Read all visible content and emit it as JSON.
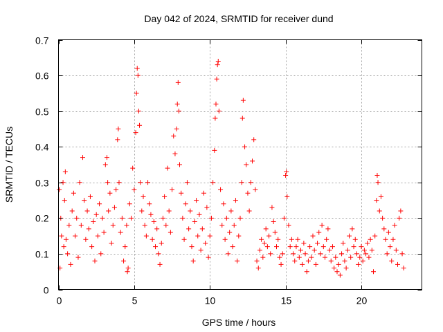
{
  "chart_data": {
    "type": "scatter",
    "title": "Day 042 of 2024, SRMTID for receiver dund",
    "xlabel": "GPS time / hours",
    "ylabel": "SRMTID / TECUs",
    "xlim": [
      0,
      24
    ],
    "ylim": [
      0,
      0.7
    ],
    "x_ticks": [
      0,
      5,
      10,
      15,
      20
    ],
    "x_tick_labels": [
      "0",
      "5",
      "10",
      "15",
      "20"
    ],
    "y_ticks": [
      0,
      0.1,
      0.2,
      0.3,
      0.4,
      0.5,
      0.6,
      0.7
    ],
    "y_tick_labels": [
      "0",
      "0.1",
      "0.2",
      "0.3",
      "0.4",
      "0.5",
      "0.6",
      "0.7"
    ],
    "grid": true,
    "marker": "plus",
    "color": "#ff0000",
    "series": [
      {
        "name": "SRMTID",
        "points": [
          [
            0.05,
            0.28
          ],
          [
            0.1,
            0.06
          ],
          [
            0.15,
            0.2
          ],
          [
            0.2,
            0.15
          ],
          [
            0.3,
            0.3
          ],
          [
            0.35,
            0.12
          ],
          [
            0.4,
            0.25
          ],
          [
            0.45,
            0.33
          ],
          [
            0.5,
            0.14
          ],
          [
            0.6,
            0.1
          ],
          [
            0.7,
            0.18
          ],
          [
            0.8,
            0.07
          ],
          [
            0.9,
            0.22
          ],
          [
            1.0,
            0.27
          ],
          [
            1.1,
            0.15
          ],
          [
            1.2,
            0.2
          ],
          [
            1.3,
            0.09
          ],
          [
            1.4,
            0.3
          ],
          [
            1.5,
            0.18
          ],
          [
            1.6,
            0.37
          ],
          [
            1.7,
            0.25
          ],
          [
            1.8,
            0.14
          ],
          [
            1.9,
            0.22
          ],
          [
            2.0,
            0.17
          ],
          [
            2.1,
            0.26
          ],
          [
            2.2,
            0.12
          ],
          [
            2.3,
            0.19
          ],
          [
            2.4,
            0.08
          ],
          [
            2.5,
            0.21
          ],
          [
            2.6,
            0.15
          ],
          [
            2.7,
            0.24
          ],
          [
            2.8,
            0.1
          ],
          [
            2.9,
            0.2
          ],
          [
            3.0,
            0.16
          ],
          [
            3.1,
            0.35
          ],
          [
            3.2,
            0.37
          ],
          [
            3.25,
            0.3
          ],
          [
            3.3,
            0.22
          ],
          [
            3.4,
            0.27
          ],
          [
            3.5,
            0.13
          ],
          [
            3.6,
            0.18
          ],
          [
            3.7,
            0.23
          ],
          [
            3.8,
            0.28
          ],
          [
            3.9,
            0.42
          ],
          [
            3.95,
            0.45
          ],
          [
            4.0,
            0.3
          ],
          [
            4.1,
            0.16
          ],
          [
            4.2,
            0.2
          ],
          [
            4.3,
            0.08
          ],
          [
            4.4,
            0.12
          ],
          [
            4.5,
            0.18
          ],
          [
            4.55,
            0.05
          ],
          [
            4.6,
            0.06
          ],
          [
            4.7,
            0.24
          ],
          [
            4.8,
            0.2
          ],
          [
            4.9,
            0.34
          ],
          [
            5.0,
            0.28
          ],
          [
            5.1,
            0.44
          ],
          [
            5.15,
            0.55
          ],
          [
            5.2,
            0.62
          ],
          [
            5.25,
            0.6
          ],
          [
            5.3,
            0.5
          ],
          [
            5.35,
            0.46
          ],
          [
            5.4,
            0.3
          ],
          [
            5.5,
            0.22
          ],
          [
            5.6,
            0.26
          ],
          [
            5.7,
            0.18
          ],
          [
            5.8,
            0.15
          ],
          [
            5.9,
            0.3
          ],
          [
            6.0,
            0.24
          ],
          [
            6.1,
            0.21
          ],
          [
            6.2,
            0.14
          ],
          [
            6.3,
            0.19
          ],
          [
            6.4,
            0.12
          ],
          [
            6.5,
            0.17
          ],
          [
            6.6,
            0.1
          ],
          [
            6.7,
            0.07
          ],
          [
            6.8,
            0.13
          ],
          [
            6.9,
            0.2
          ],
          [
            7.0,
            0.26
          ],
          [
            7.1,
            0.18
          ],
          [
            7.2,
            0.34
          ],
          [
            7.3,
            0.22
          ],
          [
            7.4,
            0.16
          ],
          [
            7.5,
            0.28
          ],
          [
            7.6,
            0.43
          ],
          [
            7.7,
            0.38
          ],
          [
            7.8,
            0.45
          ],
          [
            7.85,
            0.52
          ],
          [
            7.9,
            0.58
          ],
          [
            7.95,
            0.5
          ],
          [
            8.0,
            0.35
          ],
          [
            8.1,
            0.27
          ],
          [
            8.2,
            0.2
          ],
          [
            8.3,
            0.14
          ],
          [
            8.4,
            0.24
          ],
          [
            8.5,
            0.3
          ],
          [
            8.6,
            0.17
          ],
          [
            8.7,
            0.22
          ],
          [
            8.8,
            0.12
          ],
          [
            8.9,
            0.08
          ],
          [
            9.0,
            0.19
          ],
          [
            9.1,
            0.25
          ],
          [
            9.2,
            0.15
          ],
          [
            9.3,
            0.21
          ],
          [
            9.4,
            0.11
          ],
          [
            9.5,
            0.17
          ],
          [
            9.6,
            0.27
          ],
          [
            9.7,
            0.13
          ],
          [
            9.8,
            0.23
          ],
          [
            9.9,
            0.09
          ],
          [
            10.0,
            0.15
          ],
          [
            10.1,
            0.2
          ],
          [
            10.2,
            0.3
          ],
          [
            10.3,
            0.39
          ],
          [
            10.35,
            0.48
          ],
          [
            10.4,
            0.52
          ],
          [
            10.45,
            0.59
          ],
          [
            10.5,
            0.63
          ],
          [
            10.55,
            0.64
          ],
          [
            10.6,
            0.5
          ],
          [
            10.7,
            0.28
          ],
          [
            10.8,
            0.18
          ],
          [
            10.9,
            0.24
          ],
          [
            11.0,
            0.14
          ],
          [
            11.1,
            0.2
          ],
          [
            11.2,
            0.1
          ],
          [
            11.3,
            0.16
          ],
          [
            11.4,
            0.22
          ],
          [
            11.5,
            0.12
          ],
          [
            11.6,
            0.18
          ],
          [
            11.7,
            0.25
          ],
          [
            11.8,
            0.08
          ],
          [
            11.9,
            0.15
          ],
          [
            12.0,
            0.2
          ],
          [
            12.1,
            0.3
          ],
          [
            12.15,
            0.48
          ],
          [
            12.2,
            0.53
          ],
          [
            12.3,
            0.4
          ],
          [
            12.4,
            0.35
          ],
          [
            12.5,
            0.27
          ],
          [
            12.6,
            0.22
          ],
          [
            12.7,
            0.3
          ],
          [
            12.8,
            0.36
          ],
          [
            12.9,
            0.42
          ],
          [
            13.0,
            0.28
          ],
          [
            13.1,
            0.08
          ],
          [
            13.2,
            0.06
          ],
          [
            13.3,
            0.11
          ],
          [
            13.4,
            0.14
          ],
          [
            13.5,
            0.09
          ],
          [
            13.6,
            0.13
          ],
          [
            13.7,
            0.17
          ],
          [
            13.8,
            0.12
          ],
          [
            13.9,
            0.15
          ],
          [
            14.0,
            0.1
          ],
          [
            14.1,
            0.23
          ],
          [
            14.2,
            0.19
          ],
          [
            14.3,
            0.16
          ],
          [
            14.4,
            0.12
          ],
          [
            14.5,
            0.14
          ],
          [
            14.6,
            0.09
          ],
          [
            14.7,
            0.07
          ],
          [
            14.8,
            0.1
          ],
          [
            14.9,
            0.2
          ],
          [
            15.0,
            0.32
          ],
          [
            15.05,
            0.33
          ],
          [
            15.1,
            0.26
          ],
          [
            15.2,
            0.18
          ],
          [
            15.3,
            0.12
          ],
          [
            15.4,
            0.14
          ],
          [
            15.5,
            0.1
          ],
          [
            15.6,
            0.08
          ],
          [
            15.7,
            0.12
          ],
          [
            15.8,
            0.14
          ],
          [
            15.9,
            0.09
          ],
          [
            16.0,
            0.11
          ],
          [
            16.1,
            0.07
          ],
          [
            16.2,
            0.13
          ],
          [
            16.3,
            0.1
          ],
          [
            16.4,
            0.05
          ],
          [
            16.5,
            0.08
          ],
          [
            16.6,
            0.12
          ],
          [
            16.7,
            0.09
          ],
          [
            16.8,
            0.15
          ],
          [
            16.9,
            0.11
          ],
          [
            17.0,
            0.07
          ],
          [
            17.1,
            0.13
          ],
          [
            17.2,
            0.16
          ],
          [
            17.3,
            0.1
          ],
          [
            17.4,
            0.18
          ],
          [
            17.5,
            0.12
          ],
          [
            17.6,
            0.09
          ],
          [
            17.7,
            0.14
          ],
          [
            17.8,
            0.17
          ],
          [
            17.9,
            0.11
          ],
          [
            18.0,
            0.08
          ],
          [
            18.1,
            0.12
          ],
          [
            18.2,
            0.06
          ],
          [
            18.3,
            0.09
          ],
          [
            18.4,
            0.05
          ],
          [
            18.5,
            0.07
          ],
          [
            18.6,
            0.04
          ],
          [
            18.7,
            0.1
          ],
          [
            18.8,
            0.13
          ],
          [
            18.9,
            0.08
          ],
          [
            19.0,
            0.06
          ],
          [
            19.1,
            0.11
          ],
          [
            19.2,
            0.15
          ],
          [
            19.3,
            0.09
          ],
          [
            19.4,
            0.17
          ],
          [
            19.5,
            0.12
          ],
          [
            19.6,
            0.14
          ],
          [
            19.7,
            0.1
          ],
          [
            19.8,
            0.07
          ],
          [
            19.9,
            0.09
          ],
          [
            20.0,
            0.12
          ],
          [
            20.1,
            0.08
          ],
          [
            20.2,
            0.11
          ],
          [
            20.3,
            0.1
          ],
          [
            20.4,
            0.13
          ],
          [
            20.5,
            0.09
          ],
          [
            20.6,
            0.14
          ],
          [
            20.7,
            0.11
          ],
          [
            20.8,
            0.05
          ],
          [
            20.9,
            0.15
          ],
          [
            21.0,
            0.25
          ],
          [
            21.05,
            0.32
          ],
          [
            21.1,
            0.3
          ],
          [
            21.2,
            0.22
          ],
          [
            21.3,
            0.26
          ],
          [
            21.4,
            0.2
          ],
          [
            21.5,
            0.17
          ],
          [
            21.6,
            0.14
          ],
          [
            21.7,
            0.1
          ],
          [
            21.8,
            0.16
          ],
          [
            21.9,
            0.12
          ],
          [
            22.0,
            0.08
          ],
          [
            22.1,
            0.14
          ],
          [
            22.2,
            0.18
          ],
          [
            22.3,
            0.11
          ],
          [
            22.4,
            0.07
          ],
          [
            22.5,
            0.2
          ],
          [
            22.6,
            0.22
          ],
          [
            22.7,
            0.1
          ],
          [
            22.8,
            0.06
          ]
        ]
      }
    ]
  }
}
